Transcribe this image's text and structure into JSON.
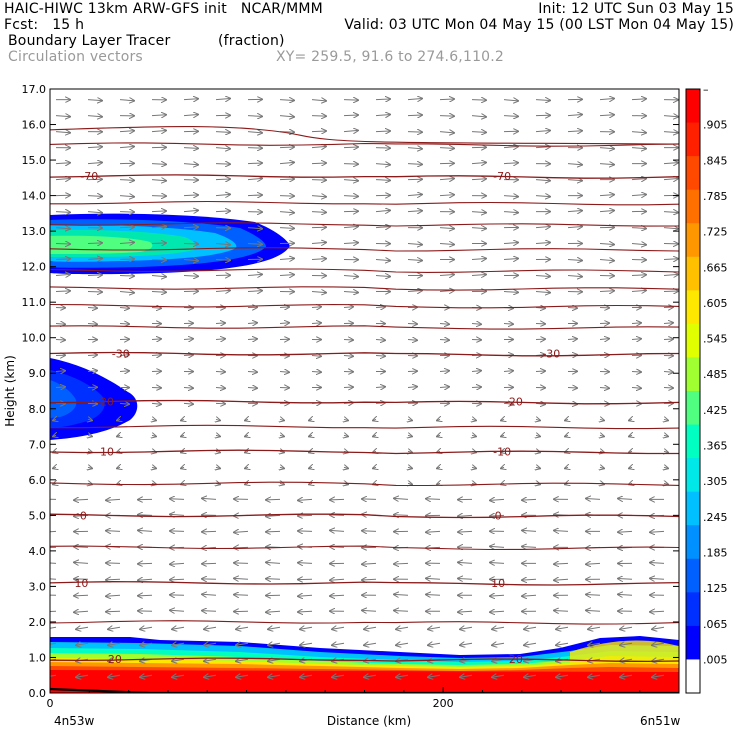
{
  "header": {
    "line1_left": "HAIC-HIWC 13km ARW-GFS init   NCAR/MMM",
    "line1_right": "Init: 12 UTC Sun 03 May 15",
    "line2_left": "Fcst:   15 h",
    "line2_right": "Valid: 03 UTC Mon 04 May 15 (00 LST Mon 04 May 15)",
    "field_name": "Boundary Layer Tracer",
    "field_units": "(fraction)",
    "vector_label": "Circulation vectors",
    "xsection": "XY= 259.5, 91.6 to 274.6,110.2"
  },
  "chart_data": {
    "type": "heatmap",
    "ylabel": "Height (km)",
    "xlabel": "Distance (km)",
    "x_range_km": [
      0,
      320
    ],
    "y_range_km": [
      0,
      17
    ],
    "y_ticks": [
      "0.0",
      "1.0",
      "2.0",
      "3.0",
      "4.0",
      "5.0",
      "6.0",
      "7.0",
      "8.0",
      "9.0",
      "10.0",
      "11.0",
      "12.0",
      "13.0",
      "14.0",
      "15.0",
      "16.0",
      "17.0"
    ],
    "x_ticks": [
      {
        "value": 0,
        "label": "0"
      },
      {
        "value": 200,
        "label": "200"
      }
    ],
    "endpoint_labels": {
      "left": "4n53w",
      "right": "6n51w"
    },
    "colorbar": {
      "labels": [
        "–",
        ".905",
        ".845",
        ".785",
        ".725",
        ".665",
        ".605",
        ".545",
        ".485",
        ".425",
        ".365",
        ".305",
        ".245",
        ".185",
        ".125",
        ".065",
        ".005"
      ],
      "colors": [
        "#ff0000",
        "#ff2000",
        "#ff4800",
        "#ff7000",
        "#ff9800",
        "#ffc000",
        "#ffe800",
        "#e0ff00",
        "#a0ff30",
        "#50ff80",
        "#00ffc0",
        "#00e8e8",
        "#00c0ff",
        "#0090ff",
        "#0060ff",
        "#0030ff",
        "#0000ff",
        "#ffffff"
      ]
    },
    "temperature_contours": [
      {
        "label": "-70",
        "km": 14.55,
        "label_x_km": [
          20,
          230
        ]
      },
      {
        "label": "-30",
        "km": 9.55,
        "label_x_km": [
          36,
          255
        ]
      },
      {
        "label": "-20",
        "km": 8.2,
        "label_x_km": [
          28,
          236
        ]
      },
      {
        "label": "-10",
        "km": 6.8,
        "label_x_km": [
          28,
          230
        ]
      },
      {
        "label": "0",
        "km": 5.0,
        "label_x_km": [
          17,
          228
        ]
      },
      {
        "label": "10",
        "km": 3.1,
        "label_x_km": [
          16,
          228
        ]
      },
      {
        "label": "20",
        "km": 0.95,
        "label_x_km": [
          33,
          237
        ]
      }
    ]
  }
}
